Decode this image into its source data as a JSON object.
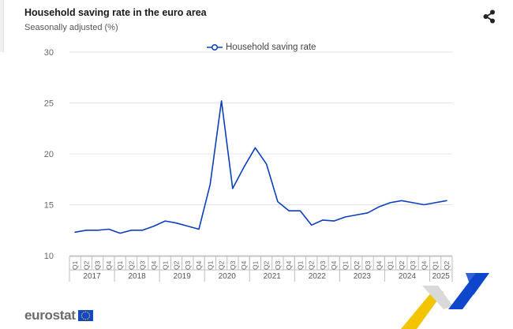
{
  "header": {
    "title": "Household saving rate in the euro area",
    "subtitle": "Seasonally adjusted (%)"
  },
  "legend": {
    "label": "Household saving rate"
  },
  "brand": {
    "logo_text": "eurostat"
  },
  "colors": {
    "series": "#0b3fbd",
    "brand_blue": "#0e47cb",
    "brand_yellow": "#f5c400",
    "grid": "#e3e3e3",
    "text": "#666666"
  },
  "chart_data": {
    "type": "line",
    "title": "Household saving rate in the euro area",
    "subtitle": "Seasonally adjusted (%)",
    "xlabel": "",
    "ylabel": "",
    "ylim": [
      10,
      30
    ],
    "yticks": [
      10,
      15,
      20,
      25,
      30
    ],
    "grid": true,
    "legend_position": "top-center",
    "quarters": [
      "Q1",
      "Q2",
      "Q3",
      "Q4",
      "Q1",
      "Q2",
      "Q3",
      "Q4",
      "Q1",
      "Q2",
      "Q3",
      "Q4",
      "Q1",
      "Q2",
      "Q3",
      "Q4",
      "Q1",
      "Q2",
      "Q3",
      "Q4",
      "Q1",
      "Q2",
      "Q3",
      "Q4",
      "Q1",
      "Q2",
      "Q3",
      "Q4",
      "Q1",
      "Q2",
      "Q3",
      "Q4",
      "Q1",
      "Q2"
    ],
    "years": [
      {
        "label": "2017",
        "quarters": 4
      },
      {
        "label": "2018",
        "quarters": 4
      },
      {
        "label": "2019",
        "quarters": 4
      },
      {
        "label": "2020",
        "quarters": 4
      },
      {
        "label": "2021",
        "quarters": 4
      },
      {
        "label": "2022",
        "quarters": 4
      },
      {
        "label": "2023",
        "quarters": 4
      },
      {
        "label": "2024",
        "quarters": 4
      },
      {
        "label": "2025",
        "quarters": 2
      }
    ],
    "series": [
      {
        "name": "Household saving rate",
        "values": [
          12.3,
          12.5,
          12.5,
          12.6,
          12.2,
          12.5,
          12.5,
          12.9,
          13.4,
          13.2,
          12.9,
          12.6,
          17.0,
          25.2,
          16.6,
          18.7,
          20.6,
          19.0,
          15.3,
          14.4,
          14.4,
          13.0,
          13.5,
          13.4,
          13.8,
          14.0,
          14.2,
          14.8,
          15.2,
          15.4,
          15.2,
          15.0,
          15.2,
          15.4
        ]
      }
    ]
  }
}
